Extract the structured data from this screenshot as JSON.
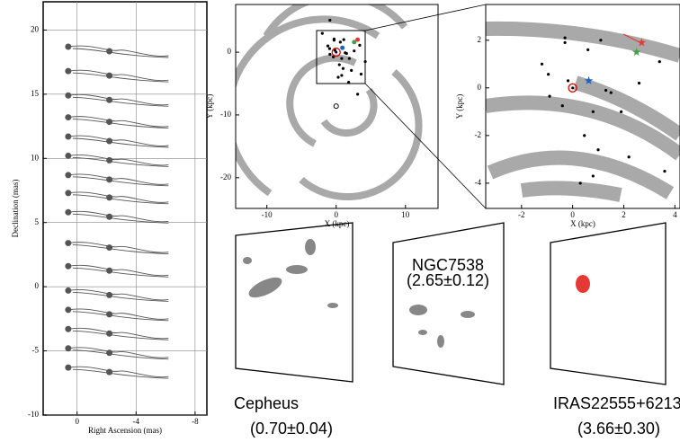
{
  "chart_data": [
    {
      "type": "parallax",
      "xlabel": "Right Ascension (mas)",
      "ylabel": "Declination (mas)",
      "xlim": [
        2.3,
        -8.8
      ],
      "ylim": [
        -10,
        22.2
      ],
      "xticks": [
        0,
        -4,
        -8
      ],
      "yticks": [
        -10,
        -5,
        0,
        5,
        10,
        15,
        20
      ],
      "grid": true,
      "color": "#555",
      "values": [
        18.7,
        16.8,
        14.9,
        13.2,
        11.7,
        10.2,
        8.7,
        7.3,
        5.8,
        3.4,
        1.6,
        -0.3,
        -1.8,
        -3.3,
        -4.8,
        -6.3
      ]
    },
    {
      "type": "scatter",
      "xlabel": "X (kpc)",
      "ylabel": "Y (kpc)",
      "xlim": [
        -14.5,
        14.7
      ],
      "ylim": [
        -24.9,
        7.6
      ],
      "xticks": [
        -10,
        0,
        10
      ],
      "yticks": [
        -20,
        -10,
        0
      ],
      "color": "#000",
      "x": [
        -0.9,
        -0.3,
        -0.3,
        0.6,
        1.1,
        -1.2,
        -0.95,
        -0.18,
        1.3,
        1.5,
        0.8,
        1.9,
        0.46,
        1.0,
        2.2,
        0.8,
        0.3,
        3.6,
        -0.9,
        -0.4,
        2.6,
        3.4,
        3.1,
        -2.0,
        4.2,
        1.8
      ],
      "y": [
        5.1,
        2.1,
        1.9,
        1.6,
        2.0,
        1.0,
        0.57,
        0.3,
        -0.1,
        -0.2,
        -1.0,
        -1.0,
        -2.0,
        -2.6,
        -2.9,
        -3.7,
        -4.0,
        -3.5,
        -0.35,
        -0.75,
        0.2,
        1.1,
        -6.7,
        3.0,
        -1.5,
        -4.8
      ],
      "highlights": [
        {
          "x": 0,
          "y": 0,
          "color": "#e00000",
          "marker": "ring"
        },
        {
          "x": 0.9,
          "y": 0.7,
          "color": "#1565c0",
          "marker": "dot"
        },
        {
          "x": 2.6,
          "y": 1.6,
          "color": "#43a047",
          "marker": "dot"
        },
        {
          "x": 3.1,
          "y": 2.0,
          "color": "#e53935",
          "marker": "dot"
        },
        {
          "x": 0,
          "y": -8.6,
          "color": "#000",
          "marker": "circle"
        }
      ]
    },
    {
      "type": "scatter",
      "xlabel": "X (kpc)",
      "ylabel": "Y (kpc)",
      "xlim": [
        -3.4,
        4.2
      ],
      "ylim": [
        -5.06,
        3.5
      ],
      "xticks": [
        -2,
        0,
        2,
        4
      ],
      "yticks": [
        -4,
        -2,
        0,
        2
      ],
      "color": "#000",
      "x": [
        -0.3,
        -0.3,
        0.6,
        1.1,
        -1.2,
        -0.95,
        -0.18,
        1.3,
        1.5,
        0.8,
        1.9,
        0.46,
        1.0,
        2.2,
        0.8,
        0.3,
        3.6,
        -0.9,
        -0.4,
        2.6,
        3.4
      ],
      "y": [
        2.1,
        1.9,
        1.6,
        2.0,
        1.0,
        0.57,
        0.3,
        -0.1,
        -0.2,
        -1.0,
        -1.0,
        -2.0,
        -2.6,
        -2.9,
        -3.7,
        -4.0,
        -3.5,
        -0.35,
        -0.75,
        0.2,
        1.1
      ],
      "highlights": [
        {
          "x": 0,
          "y": 0,
          "color": "#e00000",
          "marker": "ring"
        },
        {
          "x": 0.63,
          "y": 0.3,
          "color": "#1565c0",
          "marker": "star"
        },
        {
          "x": 2.5,
          "y": 1.5,
          "color": "#43a047",
          "marker": "star"
        },
        {
          "x": 2.7,
          "y": 1.9,
          "color": "#e53935",
          "marker": "star"
        }
      ]
    }
  ],
  "images": [
    {
      "name": "Cepheus",
      "distance": "(0.70±0.04)"
    },
    {
      "name": "NGC7538",
      "distance": "(2.65±0.12)"
    },
    {
      "name": "IRAS22555+6213",
      "distance": "(3.66±0.30)"
    }
  ]
}
